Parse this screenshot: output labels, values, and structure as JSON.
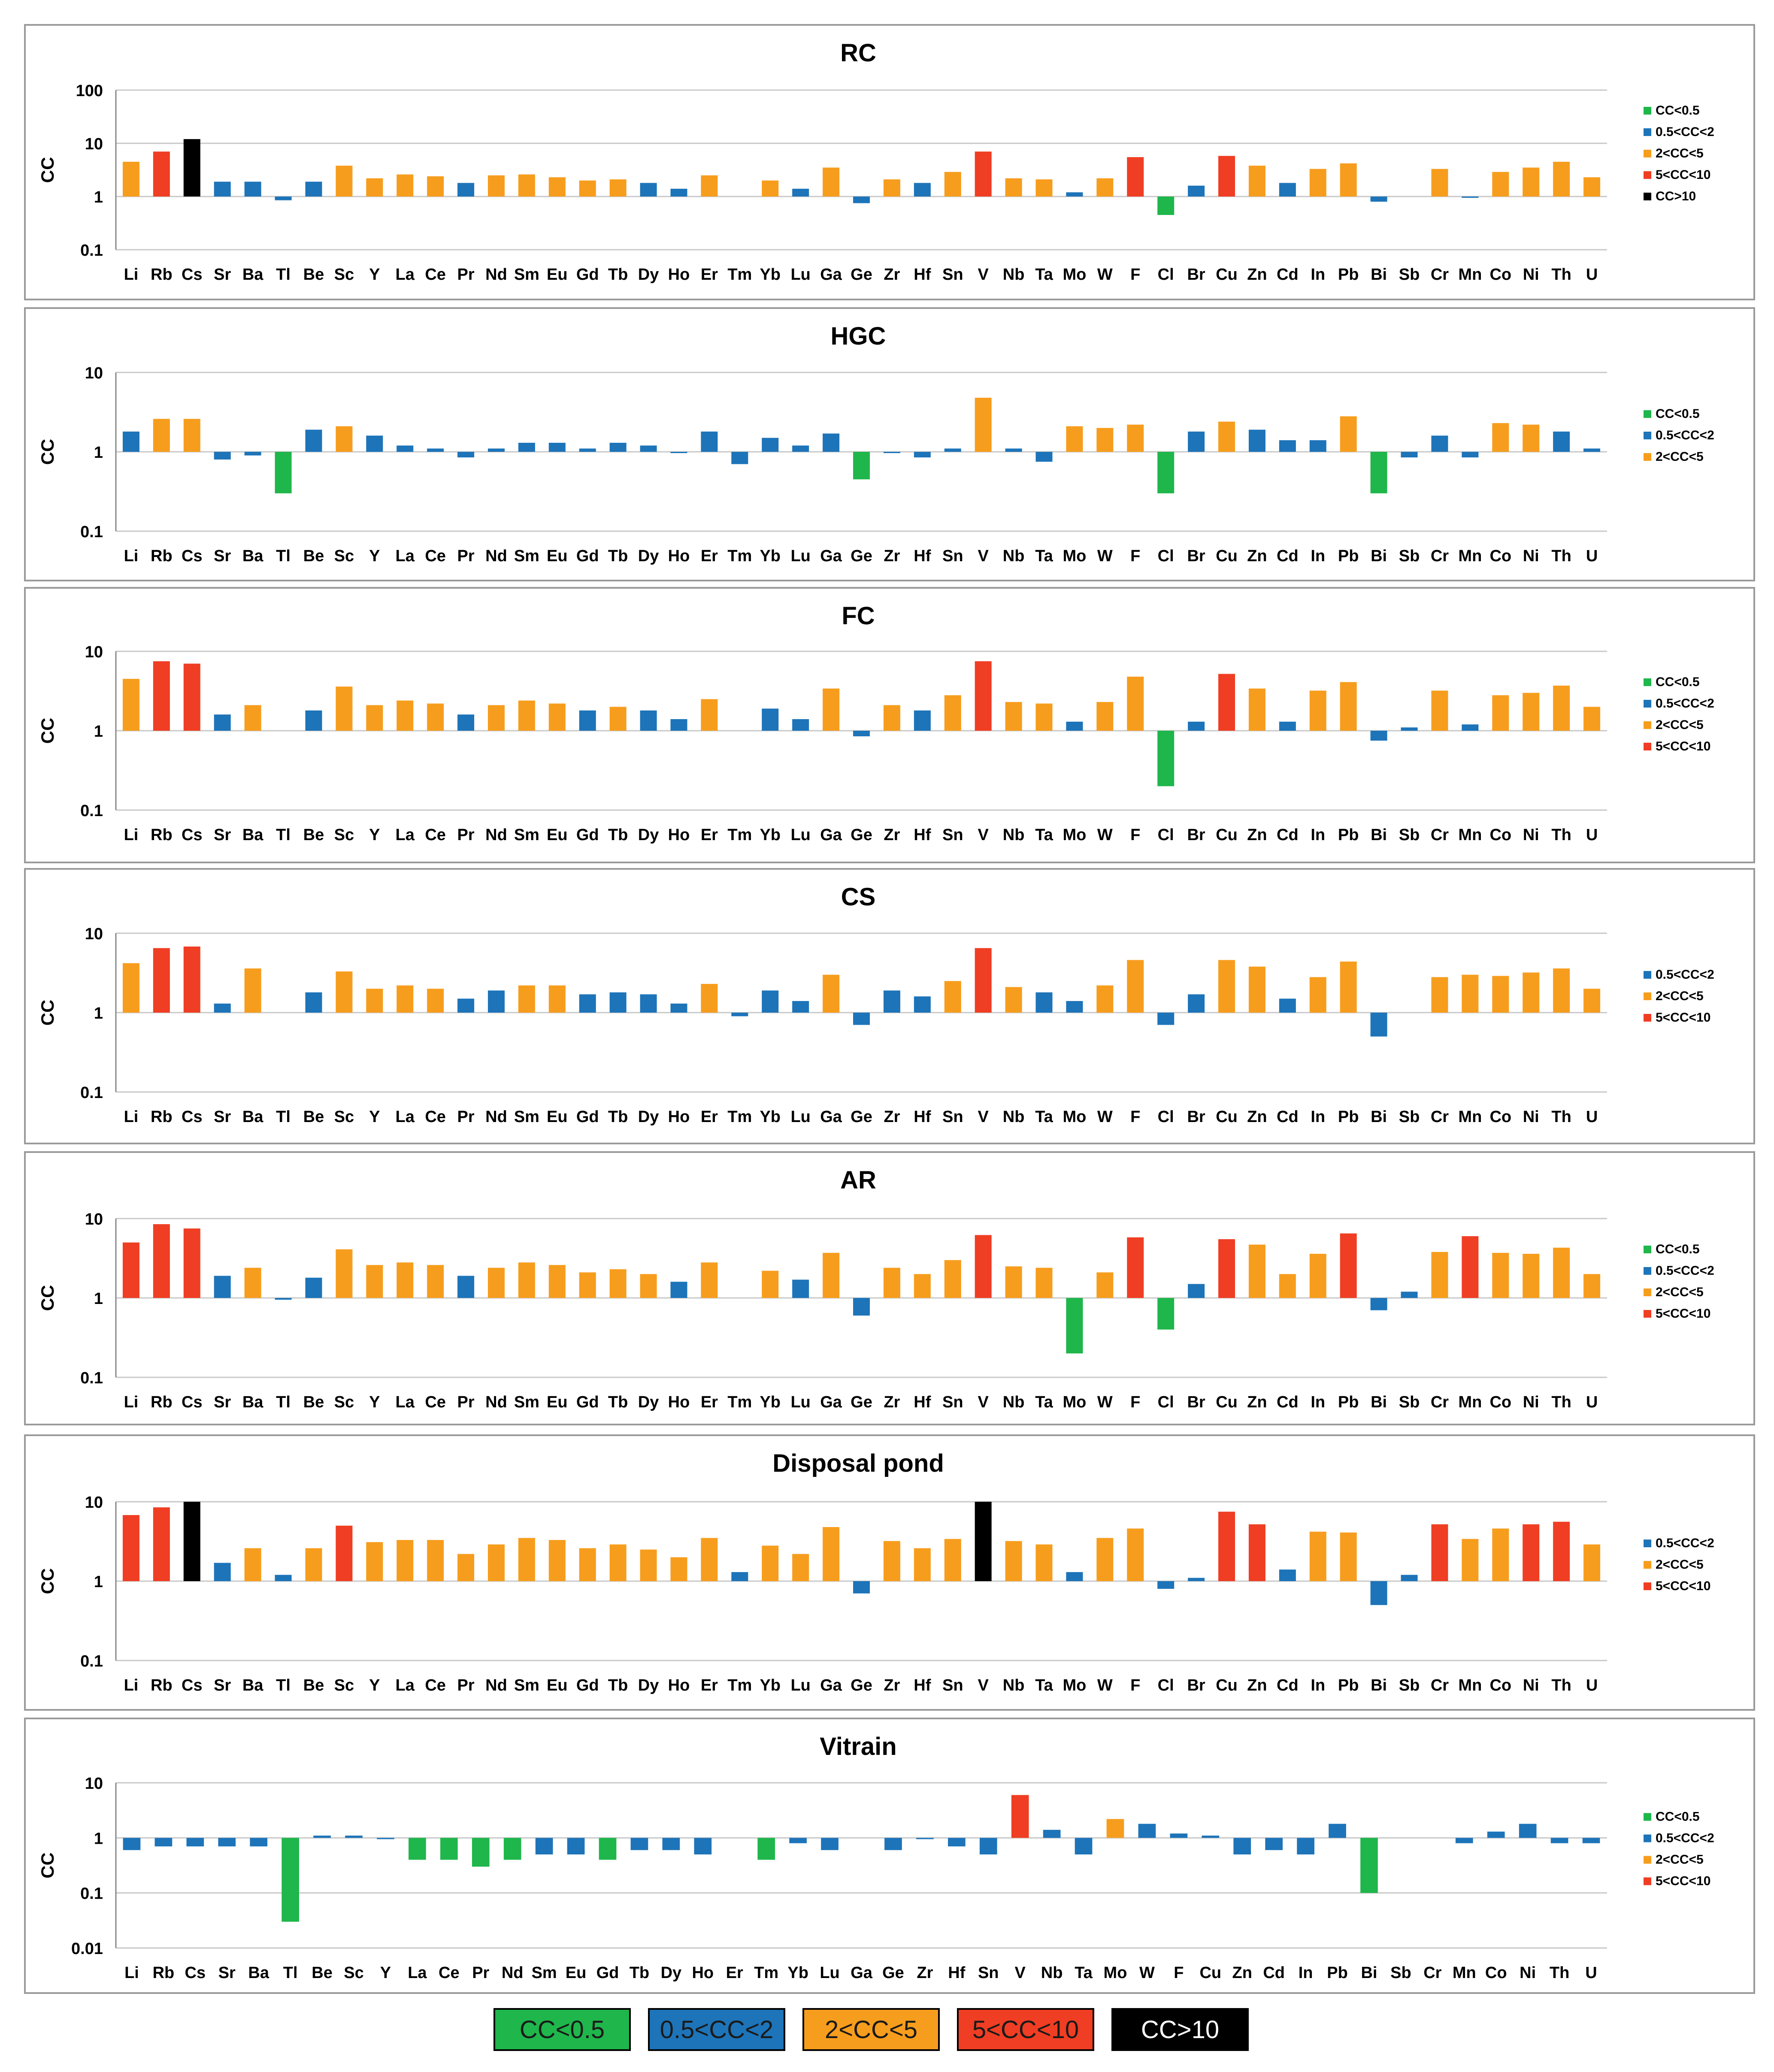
{
  "chart_data": [
    {
      "type": "bar",
      "title": "RC",
      "ylabel": "CC",
      "yscale": "log",
      "ylim": [
        0.1,
        100
      ],
      "yticks": [
        "0.1",
        "1",
        "10",
        "100"
      ],
      "categories": [
        "Li",
        "Rb",
        "Cs",
        "Sr",
        "Ba",
        "Tl",
        "Be",
        "Sc",
        "Y",
        "La",
        "Ce",
        "Pr",
        "Nd",
        "Sm",
        "Eu",
        "Gd",
        "Tb",
        "Dy",
        "Ho",
        "Er",
        "Tm",
        "Yb",
        "Lu",
        "Ga",
        "Ge",
        "Zr",
        "Hf",
        "Sn",
        "V",
        "Nb",
        "Ta",
        "Mo",
        "W",
        "F",
        "Cl",
        "Br",
        "Cu",
        "Zn",
        "Cd",
        "In",
        "Pb",
        "Bi",
        "Sb",
        "Cr",
        "Mn",
        "Co",
        "Ni",
        "Th",
        "U"
      ],
      "values": [
        4.5,
        7,
        12,
        1.9,
        1.9,
        0.85,
        1.9,
        3.8,
        2.2,
        2.6,
        2.4,
        1.8,
        2.5,
        2.6,
        2.3,
        2.0,
        2.1,
        1.8,
        1.4,
        2.5,
        null,
        2.0,
        1.4,
        3.5,
        0.75,
        2.1,
        1.8,
        2.9,
        7,
        2.2,
        2.1,
        1.2,
        2.2,
        5.5,
        0.45,
        1.6,
        5.8,
        3.8,
        1.8,
        3.3,
        4.2,
        0.8,
        null,
        3.3,
        0.95,
        2.9,
        3.5,
        4.5,
        2.3
      ],
      "legend": [
        "CC<0.5",
        "0.5<CC<2",
        "2<CC<5",
        "5<CC<10",
        "CC>10"
      ],
      "legend_position": "right"
    },
    {
      "type": "bar",
      "title": "HGC",
      "ylabel": "CC",
      "yscale": "log",
      "ylim": [
        0.1,
        10
      ],
      "yticks": [
        "0.1",
        "1",
        "10"
      ],
      "categories": [
        "Li",
        "Rb",
        "Cs",
        "Sr",
        "Ba",
        "Tl",
        "Be",
        "Sc",
        "Y",
        "La",
        "Ce",
        "Pr",
        "Nd",
        "Sm",
        "Eu",
        "Gd",
        "Tb",
        "Dy",
        "Ho",
        "Er",
        "Tm",
        "Yb",
        "Lu",
        "Ga",
        "Ge",
        "Zr",
        "Hf",
        "Sn",
        "V",
        "Nb",
        "Ta",
        "Mo",
        "W",
        "F",
        "Cl",
        "Br",
        "Cu",
        "Zn",
        "Cd",
        "In",
        "Pb",
        "Bi",
        "Sb",
        "Cr",
        "Mn",
        "Co",
        "Ni",
        "Th",
        "U"
      ],
      "values": [
        1.8,
        2.6,
        2.6,
        0.8,
        0.9,
        0.3,
        1.9,
        2.1,
        1.6,
        1.2,
        1.1,
        0.85,
        1.1,
        1.3,
        1.3,
        1.1,
        1.3,
        1.2,
        0.98,
        1.8,
        0.7,
        1.5,
        1.2,
        1.7,
        0.45,
        1.0,
        0.85,
        1.1,
        4.8,
        1.1,
        0.75,
        2.1,
        2.0,
        2.2,
        0.3,
        1.8,
        2.4,
        1.9,
        1.4,
        1.4,
        2.8,
        0.3,
        0.85,
        1.6,
        0.85,
        2.3,
        2.2,
        1.8,
        1.1
      ],
      "legend": [
        "CC<0.5",
        "0.5<CC<2",
        "2<CC<5"
      ],
      "legend_position": "right"
    },
    {
      "type": "bar",
      "title": "FC",
      "ylabel": "CC",
      "yscale": "log",
      "ylim": [
        0.1,
        10
      ],
      "yticks": [
        "0.1",
        "1",
        "10"
      ],
      "categories": [
        "Li",
        "Rb",
        "Cs",
        "Sr",
        "Ba",
        "Tl",
        "Be",
        "Sc",
        "Y",
        "La",
        "Ce",
        "Pr",
        "Nd",
        "Sm",
        "Eu",
        "Gd",
        "Tb",
        "Dy",
        "Ho",
        "Er",
        "Tm",
        "Yb",
        "Lu",
        "Ga",
        "Ge",
        "Zr",
        "Hf",
        "Sn",
        "V",
        "Nb",
        "Ta",
        "Mo",
        "W",
        "F",
        "Cl",
        "Br",
        "Cu",
        "Zn",
        "Cd",
        "In",
        "Pb",
        "Bi",
        "Sb",
        "Cr",
        "Mn",
        "Co",
        "Ni",
        "Th",
        "U"
      ],
      "values": [
        4.5,
        7.5,
        7,
        1.6,
        2.1,
        null,
        1.8,
        3.6,
        2.1,
        2.4,
        2.2,
        1.6,
        2.1,
        2.4,
        2.2,
        1.8,
        2.0,
        1.8,
        1.4,
        2.5,
        null,
        1.9,
        1.4,
        3.4,
        0.85,
        2.1,
        1.8,
        2.8,
        7.5,
        2.3,
        2.2,
        1.3,
        2.3,
        4.8,
        0.2,
        1.3,
        5.2,
        3.4,
        1.3,
        3.2,
        4.1,
        0.75,
        1.1,
        3.2,
        1.2,
        2.8,
        3.0,
        3.7,
        2.0
      ],
      "legend": [
        "CC<0.5",
        "0.5<CC<2",
        "2<CC<5",
        "5<CC<10"
      ],
      "legend_position": "right"
    },
    {
      "type": "bar",
      "title": "CS",
      "ylabel": "CC",
      "yscale": "log",
      "ylim": [
        0.1,
        10
      ],
      "yticks": [
        "0.1",
        "1",
        "10"
      ],
      "categories": [
        "Li",
        "Rb",
        "Cs",
        "Sr",
        "Ba",
        "Tl",
        "Be",
        "Sc",
        "Y",
        "La",
        "Ce",
        "Pr",
        "Nd",
        "Sm",
        "Eu",
        "Gd",
        "Tb",
        "Dy",
        "Ho",
        "Er",
        "Tm",
        "Yb",
        "Lu",
        "Ga",
        "Ge",
        "Zr",
        "Hf",
        "Sn",
        "V",
        "Nb",
        "Ta",
        "Mo",
        "W",
        "F",
        "Cl",
        "Br",
        "Cu",
        "Zn",
        "Cd",
        "In",
        "Pb",
        "Bi",
        "Sb",
        "Cr",
        "Mn",
        "Co",
        "Ni",
        "Th",
        "U"
      ],
      "values": [
        4.2,
        6.5,
        6.8,
        1.3,
        3.6,
        null,
        1.8,
        3.3,
        2.0,
        2.2,
        2.0,
        1.5,
        1.9,
        2.2,
        2.2,
        1.7,
        1.8,
        1.7,
        1.3,
        2.3,
        0.9,
        1.9,
        1.4,
        3.0,
        0.7,
        1.9,
        1.6,
        2.5,
        6.5,
        2.1,
        1.8,
        1.4,
        2.2,
        4.6,
        0.7,
        1.7,
        4.6,
        3.8,
        1.5,
        2.8,
        4.4,
        0.5,
        null,
        2.8,
        3.0,
        2.9,
        3.2,
        3.6,
        2.0
      ],
      "legend": [
        "0.5<CC<2",
        "2<CC<5",
        "5<CC<10"
      ],
      "legend_position": "right"
    },
    {
      "type": "bar",
      "title": "AR",
      "ylabel": "CC",
      "yscale": "log",
      "ylim": [
        0.1,
        10
      ],
      "yticks": [
        "0.1",
        "1",
        "10"
      ],
      "categories": [
        "Li",
        "Rb",
        "Cs",
        "Sr",
        "Ba",
        "Tl",
        "Be",
        "Sc",
        "Y",
        "La",
        "Ce",
        "Pr",
        "Nd",
        "Sm",
        "Eu",
        "Gd",
        "Tb",
        "Dy",
        "Ho",
        "Er",
        "Tm",
        "Yb",
        "Lu",
        "Ga",
        "Ge",
        "Zr",
        "Hf",
        "Sn",
        "V",
        "Nb",
        "Ta",
        "Mo",
        "W",
        "F",
        "Cl",
        "Br",
        "Cu",
        "Zn",
        "Cd",
        "In",
        "Pb",
        "Bi",
        "Sb",
        "Cr",
        "Mn",
        "Co",
        "Ni",
        "Th",
        "U"
      ],
      "values": [
        5,
        8.5,
        7.5,
        1.9,
        2.4,
        0.95,
        1.8,
        4.1,
        2.6,
        2.8,
        2.6,
        1.9,
        2.4,
        2.8,
        2.6,
        2.1,
        2.3,
        2.0,
        1.6,
        2.8,
        null,
        2.2,
        1.7,
        3.7,
        0.6,
        2.4,
        2.0,
        3.0,
        6.2,
        2.5,
        2.4,
        0.2,
        2.1,
        5.8,
        0.4,
        1.5,
        5.5,
        4.7,
        2.0,
        3.6,
        6.5,
        0.7,
        1.2,
        3.8,
        6.0,
        3.7,
        3.6,
        4.3,
        2.0
      ],
      "legend": [
        "CC<0.5",
        "0.5<CC<2",
        "2<CC<5",
        "5<CC<10"
      ],
      "legend_position": "right"
    },
    {
      "type": "bar",
      "title": "Disposal pond",
      "ylabel": "CC",
      "yscale": "log",
      "ylim": [
        0.1,
        10
      ],
      "yticks": [
        "0.1",
        "1",
        "10"
      ],
      "categories": [
        "Li",
        "Rb",
        "Cs",
        "Sr",
        "Ba",
        "Tl",
        "Be",
        "Sc",
        "Y",
        "La",
        "Ce",
        "Pr",
        "Nd",
        "Sm",
        "Eu",
        "Gd",
        "Tb",
        "Dy",
        "Ho",
        "Er",
        "Tm",
        "Yb",
        "Lu",
        "Ga",
        "Ge",
        "Zr",
        "Hf",
        "Sn",
        "V",
        "Nb",
        "Ta",
        "Mo",
        "W",
        "F",
        "Cl",
        "Br",
        "Cu",
        "Zn",
        "Cd",
        "In",
        "Pb",
        "Bi",
        "Sb",
        "Cr",
        "Mn",
        "Co",
        "Ni",
        "Th",
        "U"
      ],
      "values": [
        6.8,
        8.5,
        10,
        1.7,
        2.6,
        1.2,
        2.6,
        5,
        3.1,
        3.3,
        3.3,
        2.2,
        2.9,
        3.5,
        3.3,
        2.6,
        2.9,
        2.5,
        2.0,
        3.5,
        1.3,
        2.8,
        2.2,
        4.8,
        0.7,
        3.2,
        2.6,
        3.4,
        10,
        3.2,
        2.9,
        1.3,
        3.5,
        4.6,
        0.8,
        1.1,
        7.5,
        5.2,
        1.4,
        4.2,
        4.1,
        0.5,
        1.2,
        5.2,
        3.4,
        4.6,
        5.2,
        5.6,
        2.9
      ],
      "legend": [
        "0.5<CC<2",
        "2<CC<5",
        "5<CC<10"
      ],
      "legend_position": "right"
    },
    {
      "type": "bar",
      "title": "Vitrain",
      "ylabel": "CC",
      "yscale": "log",
      "ylim": [
        0.01,
        10
      ],
      "yticks": [
        "0.01",
        "0.1",
        "1",
        "10"
      ],
      "categories": [
        "Li",
        "Rb",
        "Cs",
        "Sr",
        "Ba",
        "Tl",
        "Be",
        "Sc",
        "Y",
        "La",
        "Ce",
        "Pr",
        "Nd",
        "Sm",
        "Eu",
        "Gd",
        "Tb",
        "Dy",
        "Ho",
        "Er",
        "Tm",
        "Yb",
        "Lu",
        "Ga",
        "Ge",
        "Zr",
        "Hf",
        "Sn",
        "V",
        "Nb",
        "Ta",
        "Mo",
        "W",
        "F",
        "Cu",
        "Zn",
        "Cd",
        "In",
        "Pb",
        "Bi",
        "Sb",
        "Cr",
        "Mn",
        "Co",
        "Ni",
        "Th",
        "U"
      ],
      "values": [
        0.6,
        0.7,
        0.7,
        0.7,
        0.7,
        0.03,
        1.1,
        1.1,
        0.95,
        0.4,
        0.4,
        0.3,
        0.4,
        0.5,
        0.5,
        0.4,
        0.6,
        0.6,
        0.5,
        null,
        0.4,
        0.8,
        0.6,
        null,
        0.6,
        0.95,
        0.7,
        0.5,
        6,
        1.4,
        0.5,
        2.2,
        1.8,
        1.2,
        1.1,
        0.5,
        0.6,
        0.5,
        1.8,
        0.1,
        null,
        null,
        0.8,
        1.3,
        1.8,
        0.8,
        0.8
      ],
      "legend": [
        "CC<0.5",
        "0.5<CC<2",
        "2<CC<5",
        "5<CC<10"
      ],
      "legend_position": "right"
    }
  ],
  "bottom_legend": [
    {
      "label": "CC<0.5",
      "color": "#1fb64b",
      "text_color": "#1a1a1a"
    },
    {
      "label": "0.5<CC<2",
      "color": "#1d74b9",
      "text_color": "#1a1a1a"
    },
    {
      "label": "2<CC<5",
      "color": "#f79d1d",
      "text_color": "#1a1a1a"
    },
    {
      "label": "5<CC<10",
      "color": "#ef3e23",
      "text_color": "#1a1a1a"
    },
    {
      "label": "CC>10",
      "color": "#000000",
      "text_color": "#ffffff"
    }
  ],
  "colors": {
    "CC<0.5": "#1fb64b",
    "0.5<CC<2": "#1d74b9",
    "2<CC<5": "#f79d1d",
    "5<CC<10": "#ef3e23",
    "CC>10": "#000000"
  }
}
